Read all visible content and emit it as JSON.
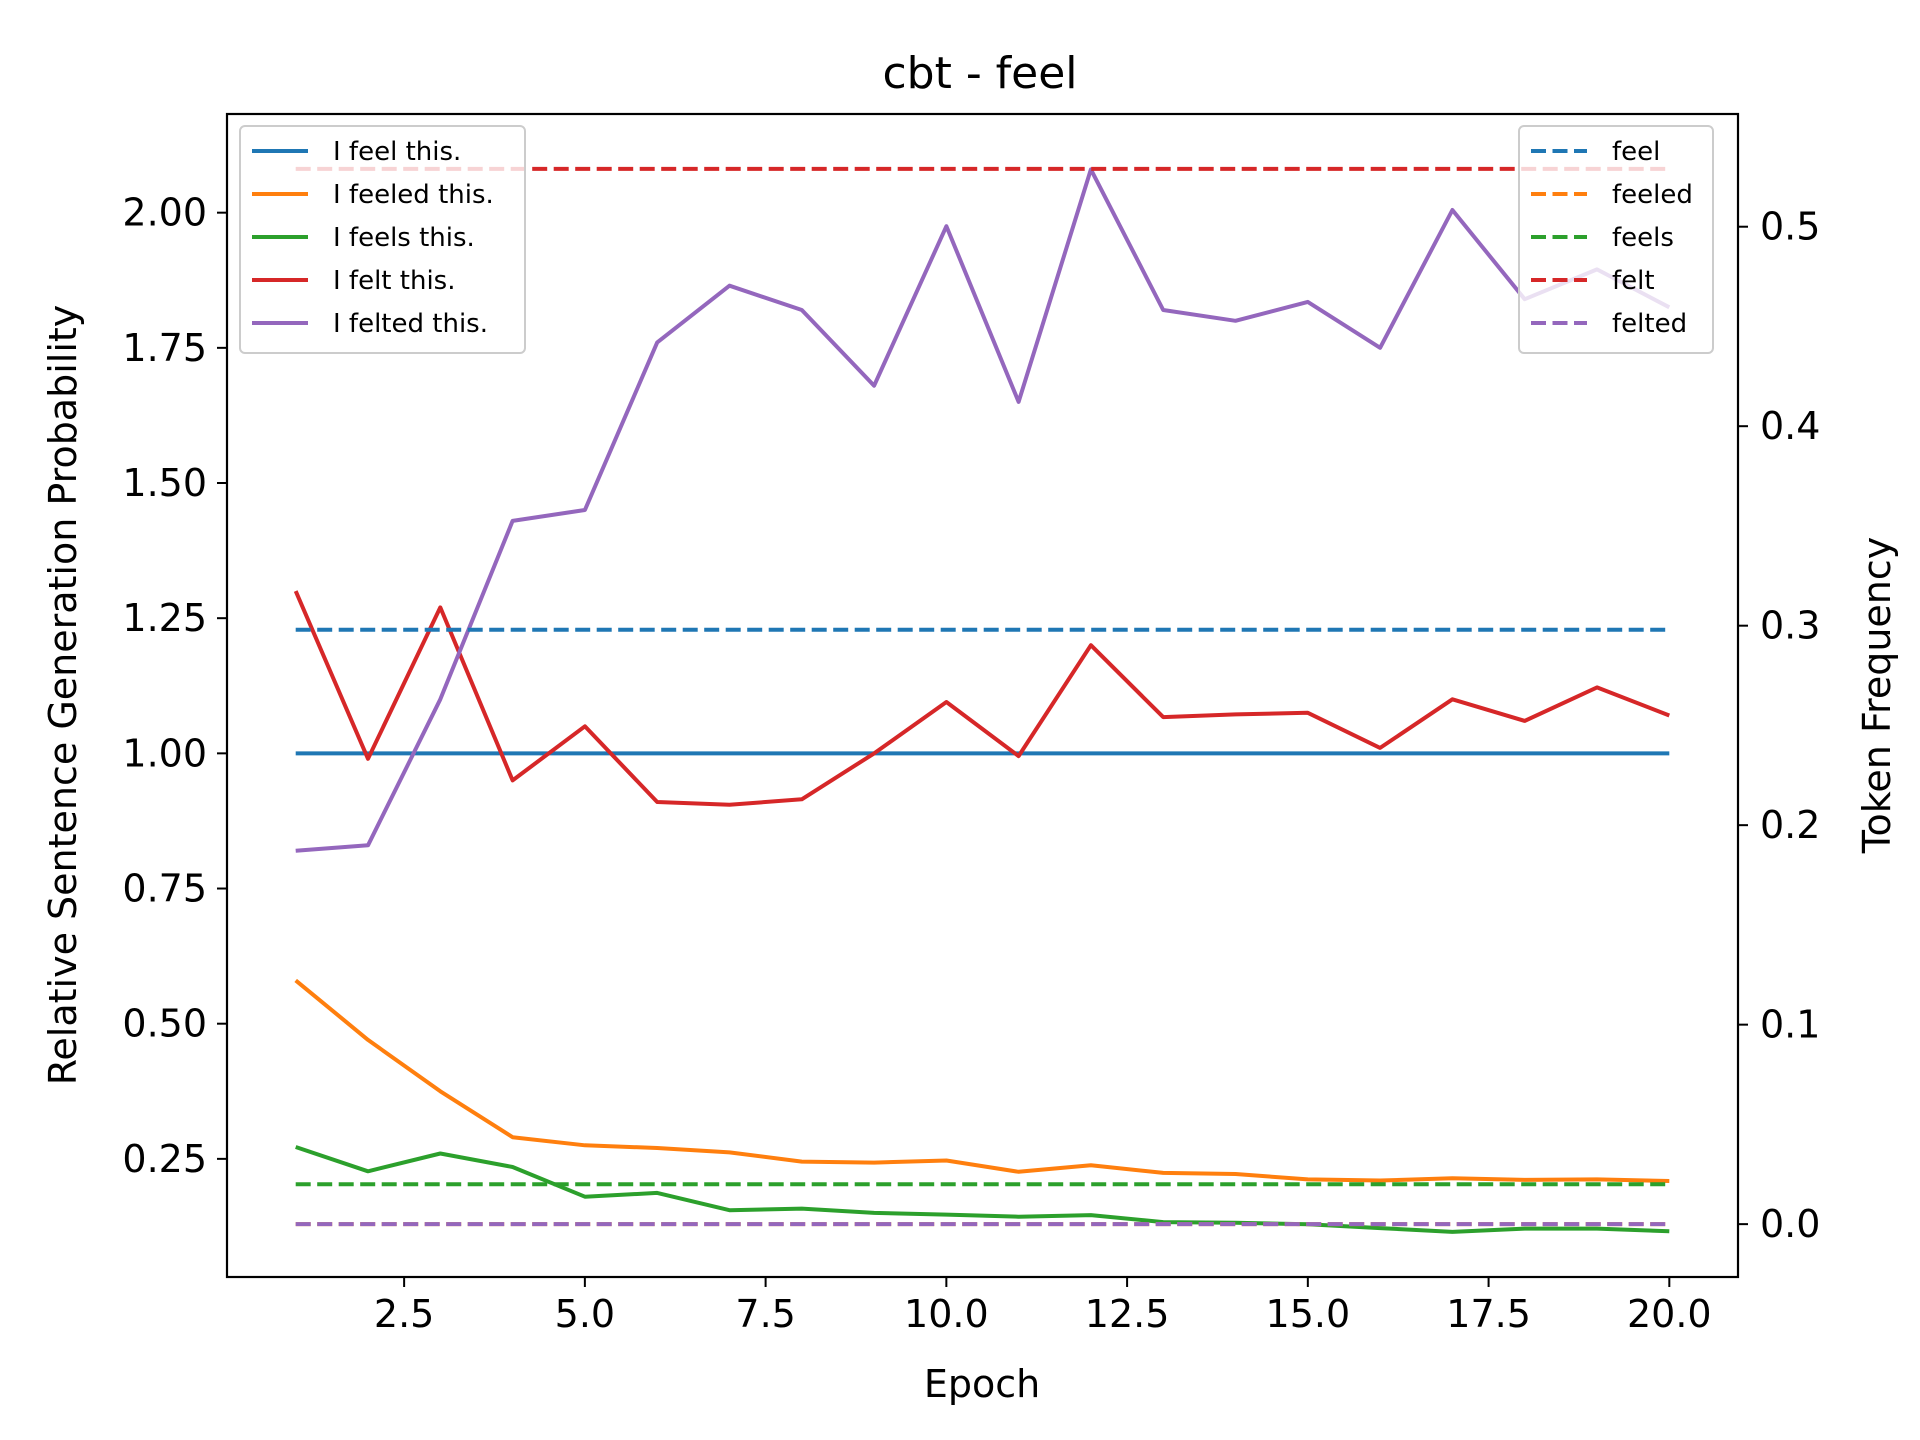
{
  "chart_data": {
    "type": "line",
    "title": "cbt - feel",
    "xlabel": "Epoch",
    "ylabel_left": "Relative Sentence Generation Probability",
    "ylabel_right": "Token Frequency",
    "xlim": [
      0.05,
      20.95
    ],
    "ylim_left": [
      0.0315,
      2.1825
    ],
    "ylim_right": [
      -0.0265,
      0.5565
    ],
    "x_ticks": [
      2.5,
      5.0,
      7.5,
      10.0,
      12.5,
      15.0,
      17.5,
      20.0
    ],
    "x_tick_labels": [
      "2.5",
      "5.0",
      "7.5",
      "10.0",
      "12.5",
      "15.0",
      "17.5",
      "20.0"
    ],
    "y_left_ticks": [
      0.25,
      0.5,
      0.75,
      1.0,
      1.25,
      1.5,
      1.75,
      2.0
    ],
    "y_left_tick_labels": [
      "0.25",
      "0.50",
      "0.75",
      "1.00",
      "1.25",
      "1.50",
      "1.75",
      "2.00"
    ],
    "y_right_ticks": [
      0.0,
      0.1,
      0.2,
      0.3,
      0.4,
      0.5
    ],
    "y_right_tick_labels": [
      "0.0",
      "0.1",
      "0.2",
      "0.3",
      "0.4",
      "0.5"
    ],
    "x": [
      1,
      2,
      3,
      4,
      5,
      6,
      7,
      8,
      9,
      10,
      11,
      12,
      13,
      14,
      15,
      16,
      17,
      18,
      19,
      20
    ],
    "grid": false,
    "legend_left_position": "upper-left",
    "legend_right_position": "upper-right",
    "series": [
      {
        "name": "I feel this.",
        "axis": "left",
        "style": "solid",
        "color": "#1f77b4",
        "values": [
          1.0,
          1.0,
          1.0,
          1.0,
          1.0,
          1.0,
          1.0,
          1.0,
          1.0,
          1.0,
          1.0,
          1.0,
          1.0,
          1.0,
          1.0,
          1.0,
          1.0,
          1.0,
          1.0,
          1.0
        ]
      },
      {
        "name": "I feeled this.",
        "axis": "left",
        "style": "solid",
        "color": "#ff7f0e",
        "values": [
          0.58,
          0.47,
          0.375,
          0.29,
          0.275,
          0.27,
          0.262,
          0.245,
          0.243,
          0.247,
          0.226,
          0.238,
          0.224,
          0.222,
          0.212,
          0.21,
          0.214,
          0.211,
          0.212,
          0.209
        ]
      },
      {
        "name": "I feels this.",
        "axis": "left",
        "style": "solid",
        "color": "#2ca02c",
        "values": [
          0.272,
          0.227,
          0.26,
          0.235,
          0.18,
          0.187,
          0.155,
          0.158,
          0.15,
          0.147,
          0.143,
          0.146,
          0.133,
          0.132,
          0.129,
          0.122,
          0.115,
          0.121,
          0.121,
          0.116
        ]
      },
      {
        "name": "I felt this.",
        "axis": "left",
        "style": "solid",
        "color": "#d62728",
        "values": [
          1.3,
          0.99,
          1.27,
          0.95,
          1.05,
          0.91,
          0.905,
          0.915,
          1.0,
          1.095,
          0.995,
          1.2,
          1.067,
          1.072,
          1.075,
          1.01,
          1.1,
          1.06,
          1.122,
          1.07
        ]
      },
      {
        "name": "I felted this.",
        "axis": "left",
        "style": "solid",
        "color": "#9467bd",
        "values": [
          0.82,
          0.83,
          1.1,
          1.43,
          1.45,
          1.76,
          1.865,
          1.82,
          1.68,
          1.975,
          1.65,
          2.08,
          1.82,
          1.8,
          1.835,
          1.75,
          2.005,
          1.84,
          1.895,
          1.825
        ]
      },
      {
        "name": "feel",
        "axis": "right",
        "style": "dashed",
        "color": "#1f77b4",
        "values": [
          0.298,
          0.298,
          0.298,
          0.298,
          0.298,
          0.298,
          0.298,
          0.298,
          0.298,
          0.298,
          0.298,
          0.298,
          0.298,
          0.298,
          0.298,
          0.298,
          0.298,
          0.298,
          0.298,
          0.298
        ]
      },
      {
        "name": "feeled",
        "axis": "right",
        "style": "dashed",
        "color": "#ff7f0e",
        "values": [
          0.0,
          0.0,
          0.0,
          0.0,
          0.0,
          0.0,
          0.0,
          0.0,
          0.0,
          0.0,
          0.0,
          0.0,
          0.0,
          0.0,
          0.0,
          0.0,
          0.0,
          0.0,
          0.0,
          0.0
        ]
      },
      {
        "name": "feels",
        "axis": "right",
        "style": "dashed",
        "color": "#2ca02c",
        "values": [
          0.02,
          0.02,
          0.02,
          0.02,
          0.02,
          0.02,
          0.02,
          0.02,
          0.02,
          0.02,
          0.02,
          0.02,
          0.02,
          0.02,
          0.02,
          0.02,
          0.02,
          0.02,
          0.02,
          0.02
        ]
      },
      {
        "name": "felt",
        "axis": "right",
        "style": "dashed",
        "color": "#d62728",
        "values": [
          0.529,
          0.529,
          0.529,
          0.529,
          0.529,
          0.529,
          0.529,
          0.529,
          0.529,
          0.529,
          0.529,
          0.529,
          0.529,
          0.529,
          0.529,
          0.529,
          0.529,
          0.529,
          0.529,
          0.529
        ]
      },
      {
        "name": "felted",
        "axis": "right",
        "style": "dashed",
        "color": "#9467bd",
        "values": [
          0.0,
          0.0,
          0.0,
          0.0,
          0.0,
          0.0,
          0.0,
          0.0,
          0.0,
          0.0,
          0.0,
          0.0,
          0.0,
          0.0,
          0.0,
          0.0,
          0.0,
          0.0,
          0.0,
          0.0
        ]
      }
    ]
  }
}
